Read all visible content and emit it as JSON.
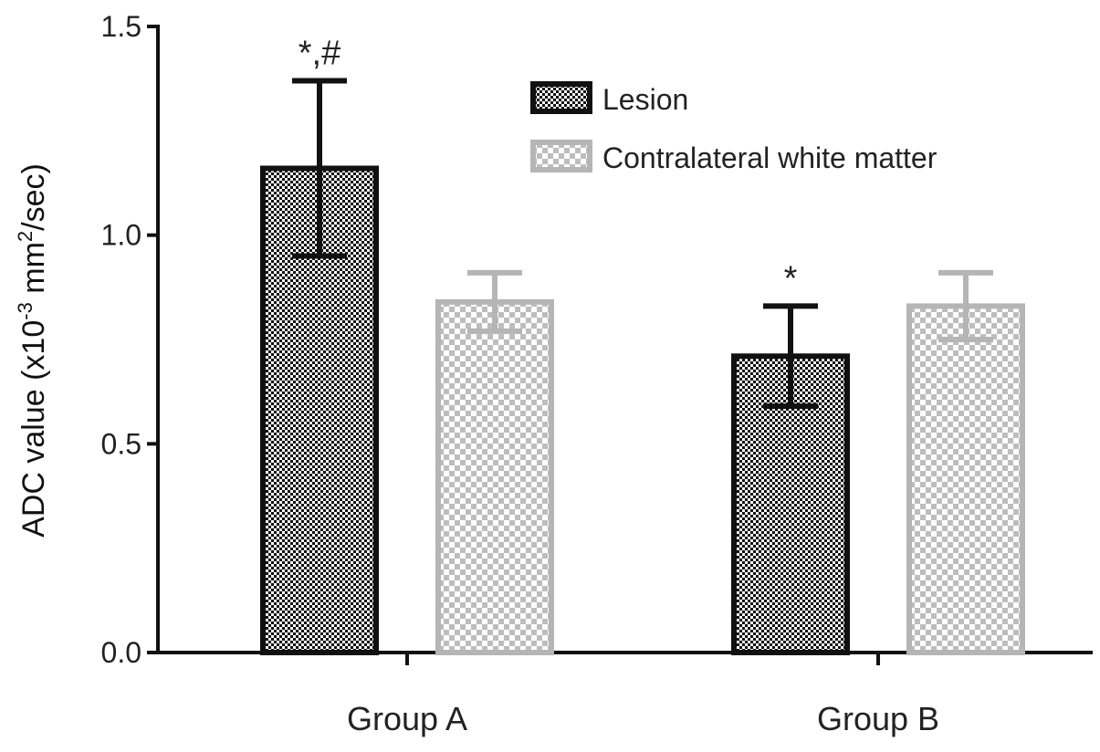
{
  "chart_data": {
    "type": "bar",
    "categories": [
      "Group A",
      "Group B"
    ],
    "series": [
      {
        "name": "Lesion",
        "values": [
          1.16,
          0.71
        ],
        "errors": [
          0.21,
          0.12
        ],
        "color": "#111111",
        "pattern": "dark-checker"
      },
      {
        "name": "Contralateral white matter",
        "values": [
          0.84,
          0.83
        ],
        "errors": [
          0.07,
          0.08
        ],
        "color": "#b5b5b5",
        "pattern": "light-checker"
      }
    ],
    "annotations": [
      {
        "category": "Group A",
        "series": "Lesion",
        "text": "*,#"
      },
      {
        "category": "Group B",
        "series": "Lesion",
        "text": "*"
      }
    ],
    "ylabel": {
      "main": "ADC value (x10",
      "sup1": "-3",
      "mid": " mm",
      "sup2": "2",
      "end": "/sec)"
    },
    "xlabel": "",
    "ylim": [
      0,
      1.5
    ],
    "yticks": [
      "0.0",
      "0.5",
      "1.0",
      "1.5"
    ],
    "ytick_values": [
      0,
      0.5,
      1.0,
      1.5
    ],
    "grid": false,
    "legend": "top-right"
  }
}
